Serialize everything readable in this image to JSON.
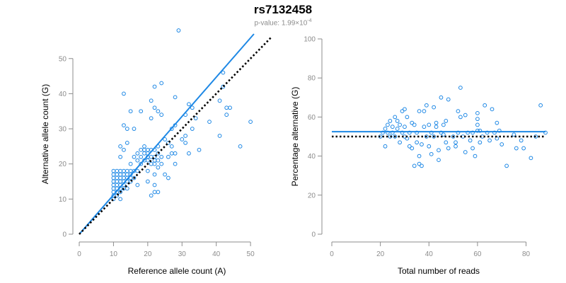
{
  "title": "rs7132458",
  "subtitle": {
    "prefix": "p-value: 1.99×10",
    "exponent": "-4"
  },
  "colors": {
    "points": "#1e88e5",
    "fit_line": "#1e88e5",
    "reference_line": "#000000",
    "axis": "#8c8c8c"
  },
  "chart_data": [
    {
      "type": "scatter",
      "xlabel": "Reference allele count (A)",
      "ylabel": "Alternative allele count (G)",
      "xlim": [
        0,
        57
      ],
      "ylim": [
        0,
        57
      ],
      "xticks": [
        0,
        10,
        20,
        30,
        40,
        50
      ],
      "yticks": [
        0,
        10,
        20,
        30,
        40,
        50
      ],
      "grid": false,
      "lines": [
        {
          "style": "solid",
          "color": "#1e88e5",
          "points": [
            [
              0,
              0
            ],
            [
              51,
              57
            ]
          ]
        },
        {
          "style": "dotted",
          "color": "#000000",
          "points": [
            [
              0,
              0
            ],
            [
              56,
              56
            ]
          ]
        }
      ],
      "points": [
        [
          10,
          10
        ],
        [
          10,
          11
        ],
        [
          10,
          12
        ],
        [
          10,
          13
        ],
        [
          10,
          14
        ],
        [
          10,
          15
        ],
        [
          10,
          16
        ],
        [
          10,
          17
        ],
        [
          10,
          18
        ],
        [
          11,
          11
        ],
        [
          11,
          12
        ],
        [
          11,
          13
        ],
        [
          11,
          14
        ],
        [
          11,
          15
        ],
        [
          11,
          16
        ],
        [
          11,
          17
        ],
        [
          11,
          18
        ],
        [
          12,
          10
        ],
        [
          12,
          12
        ],
        [
          12,
          13
        ],
        [
          12,
          14
        ],
        [
          12,
          15
        ],
        [
          12,
          16
        ],
        [
          12,
          17
        ],
        [
          12,
          18
        ],
        [
          13,
          13
        ],
        [
          13,
          14
        ],
        [
          13,
          15
        ],
        [
          13,
          16
        ],
        [
          13,
          17
        ],
        [
          13,
          18
        ],
        [
          14,
          13
        ],
        [
          14,
          15
        ],
        [
          14,
          16
        ],
        [
          14,
          17
        ],
        [
          14,
          18
        ],
        [
          15,
          15
        ],
        [
          15,
          16
        ],
        [
          15,
          17
        ],
        [
          15,
          18
        ],
        [
          16,
          16
        ],
        [
          16,
          18
        ],
        [
          17,
          18
        ],
        [
          12,
          22
        ],
        [
          12,
          25
        ],
        [
          13,
          24
        ],
        [
          13,
          31
        ],
        [
          13,
          40
        ],
        [
          14,
          26
        ],
        [
          14,
          30
        ],
        [
          15,
          20
        ],
        [
          15,
          35
        ],
        [
          16,
          22
        ],
        [
          16,
          30
        ],
        [
          17,
          14
        ],
        [
          17,
          21
        ],
        [
          17,
          23
        ],
        [
          18,
          20
        ],
        [
          18,
          22
        ],
        [
          18,
          24
        ],
        [
          18,
          35
        ],
        [
          19,
          21
        ],
        [
          19,
          23
        ],
        [
          19,
          24
        ],
        [
          19,
          25
        ],
        [
          20,
          15
        ],
        [
          20,
          18
        ],
        [
          20,
          21
        ],
        [
          20,
          22
        ],
        [
          20,
          23
        ],
        [
          20,
          24
        ],
        [
          21,
          20
        ],
        [
          21,
          22
        ],
        [
          21,
          24
        ],
        [
          21,
          33
        ],
        [
          21,
          38
        ],
        [
          21,
          11
        ],
        [
          22,
          12
        ],
        [
          22,
          14
        ],
        [
          22,
          17
        ],
        [
          22,
          20
        ],
        [
          22,
          21
        ],
        [
          22,
          22
        ],
        [
          22,
          24
        ],
        [
          22,
          36
        ],
        [
          22,
          42
        ],
        [
          23,
          19
        ],
        [
          23,
          21
        ],
        [
          23,
          23
        ],
        [
          23,
          25
        ],
        [
          23,
          35
        ],
        [
          23,
          12
        ],
        [
          24,
          20
        ],
        [
          24,
          22
        ],
        [
          24,
          34
        ],
        [
          24,
          43
        ],
        [
          25,
          17
        ],
        [
          25,
          27
        ],
        [
          26,
          16
        ],
        [
          26,
          22
        ],
        [
          26,
          26
        ],
        [
          27,
          23
        ],
        [
          27,
          25
        ],
        [
          27,
          30
        ],
        [
          28,
          20
        ],
        [
          28,
          23
        ],
        [
          28,
          31
        ],
        [
          28,
          39
        ],
        [
          29,
          58
        ],
        [
          30,
          27
        ],
        [
          31,
          26
        ],
        [
          31,
          28
        ],
        [
          31,
          34
        ],
        [
          32,
          37
        ],
        [
          32,
          23
        ],
        [
          33,
          30
        ],
        [
          33,
          36
        ],
        [
          34,
          33
        ],
        [
          35,
          24
        ],
        [
          38,
          32
        ],
        [
          41,
          38
        ],
        [
          42,
          42
        ],
        [
          42,
          46
        ],
        [
          43,
          36
        ],
        [
          43,
          34
        ],
        [
          44,
          36
        ],
        [
          47,
          25
        ],
        [
          50,
          32
        ],
        [
          41,
          28
        ]
      ]
    },
    {
      "type": "scatter",
      "xlabel": "Total number of reads",
      "ylabel": "Percentage alternative (G)",
      "xlim": [
        0,
        88
      ],
      "ylim": [
        0,
        100
      ],
      "xticks": [
        0,
        20,
        40,
        60,
        80
      ],
      "yticks": [
        0,
        20,
        40,
        60,
        80,
        100
      ],
      "grid": false,
      "lines": [
        {
          "style": "solid",
          "color": "#1e88e5",
          "points": [
            [
              0,
              52.5
            ],
            [
              88,
              52.5
            ]
          ]
        },
        {
          "style": "dotted",
          "color": "#000000",
          "points": [
            [
              0,
              50
            ],
            [
              88,
              50
            ]
          ]
        }
      ],
      "points": [
        [
          20,
          50
        ],
        [
          21,
          52
        ],
        [
          22,
          45
        ],
        [
          22,
          54
        ],
        [
          23,
          56
        ],
        [
          23,
          52
        ],
        [
          24,
          50
        ],
        [
          24,
          58
        ],
        [
          25,
          55
        ],
        [
          25,
          52
        ],
        [
          26,
          60
        ],
        [
          26,
          50
        ],
        [
          27,
          54
        ],
        [
          27,
          58
        ],
        [
          28,
          56
        ],
        [
          28,
          47
        ],
        [
          29,
          52
        ],
        [
          29,
          63
        ],
        [
          30,
          64
        ],
        [
          30,
          55
        ],
        [
          30,
          50
        ],
        [
          31,
          60
        ],
        [
          31,
          49
        ],
        [
          32,
          52
        ],
        [
          32,
          45
        ],
        [
          33,
          57
        ],
        [
          33,
          44
        ],
        [
          34,
          35
        ],
        [
          34,
          56
        ],
        [
          35,
          52
        ],
        [
          35,
          47
        ],
        [
          36,
          40
        ],
        [
          36,
          36
        ],
        [
          36,
          63
        ],
        [
          37,
          35
        ],
        [
          37,
          46
        ],
        [
          38,
          55
        ],
        [
          38,
          63
        ],
        [
          39,
          66
        ],
        [
          39,
          50
        ],
        [
          40,
          56
        ],
        [
          40,
          45
        ],
        [
          41,
          52
        ],
        [
          41,
          41
        ],
        [
          42,
          65
        ],
        [
          42,
          50
        ],
        [
          43,
          55
        ],
        [
          43,
          57
        ],
        [
          44,
          43
        ],
        [
          44,
          38
        ],
        [
          45,
          52
        ],
        [
          45,
          70
        ],
        [
          46,
          56
        ],
        [
          46,
          51
        ],
        [
          47,
          47
        ],
        [
          47,
          58
        ],
        [
          48,
          69
        ],
        [
          48,
          44
        ],
        [
          50,
          50
        ],
        [
          51,
          47
        ],
        [
          51,
          45
        ],
        [
          52,
          52
        ],
        [
          52,
          63
        ],
        [
          53,
          75
        ],
        [
          53,
          60
        ],
        [
          54,
          50
        ],
        [
          55,
          61
        ],
        [
          55,
          42
        ],
        [
          56,
          52
        ],
        [
          57,
          48
        ],
        [
          58,
          44
        ],
        [
          58,
          52
        ],
        [
          59,
          40
        ],
        [
          60,
          62
        ],
        [
          60,
          59
        ],
        [
          60,
          56
        ],
        [
          60,
          53
        ],
        [
          61,
          53
        ],
        [
          61,
          47
        ],
        [
          62,
          50
        ],
        [
          63,
          66
        ],
        [
          64,
          52
        ],
        [
          65,
          48
        ],
        [
          66,
          64
        ],
        [
          67,
          52
        ],
        [
          68,
          57
        ],
        [
          68,
          49
        ],
        [
          69,
          53
        ],
        [
          70,
          46
        ],
        [
          72,
          35
        ],
        [
          75,
          51
        ],
        [
          76,
          44
        ],
        [
          78,
          48
        ],
        [
          79,
          44
        ],
        [
          82,
          39
        ],
        [
          84,
          50
        ],
        [
          86,
          66
        ],
        [
          88,
          52
        ]
      ]
    }
  ]
}
